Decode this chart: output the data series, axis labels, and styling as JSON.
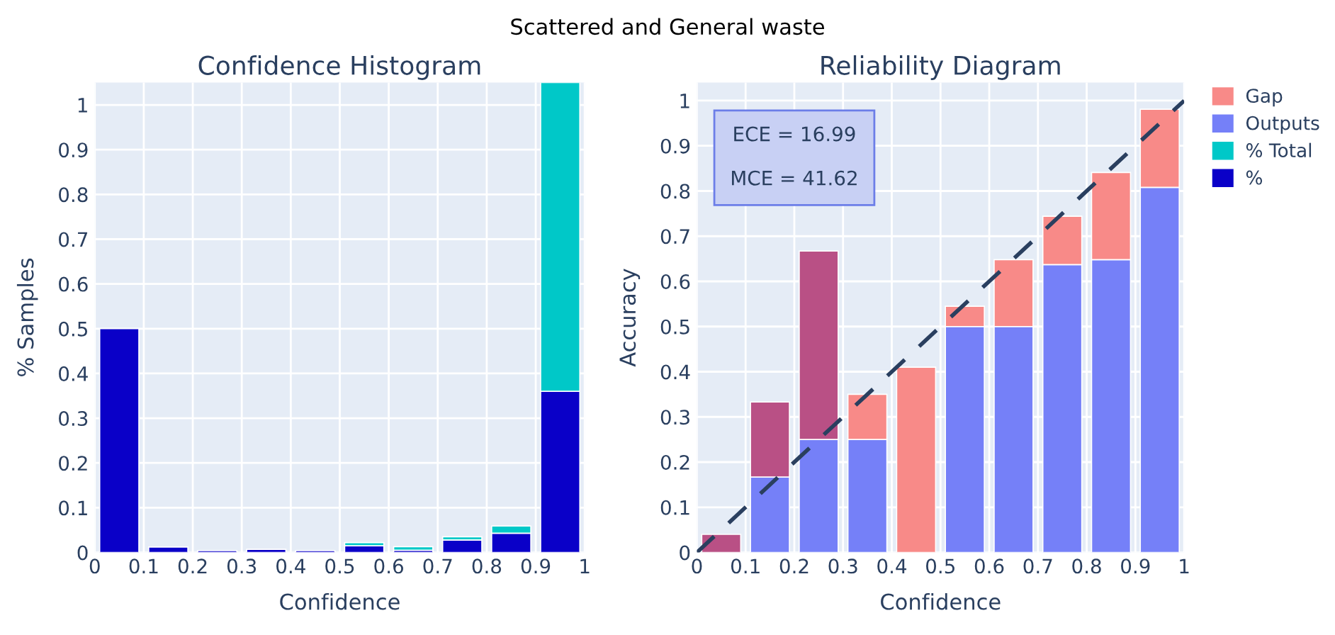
{
  "chart_data": [
    {
      "type": "bar",
      "title": "Confidence Histogram",
      "xlabel": "Confidence",
      "ylabel": "% Samples",
      "annotations": [
        "Scattered and General waste"
      ],
      "x": [
        0.05,
        0.15,
        0.25,
        0.35,
        0.45,
        0.55,
        0.65,
        0.75,
        0.85,
        0.95
      ],
      "stacked": true,
      "series": [
        {
          "name": "%",
          "color": "#0a00c8",
          "values": [
            0.5,
            0.012,
            0.004,
            0.007,
            0.004,
            0.015,
            0.005,
            0.028,
            0.043,
            0.36
          ]
        },
        {
          "name": "% Total",
          "color": "#00c8c8",
          "values": [
            null,
            null,
            null,
            null,
            null,
            0.007,
            0.008,
            0.007,
            0.016,
            0.69
          ]
        }
      ],
      "xlim": [
        0,
        1
      ],
      "xticks": [
        0,
        0.1,
        0.2,
        0.3,
        0.4,
        0.5,
        0.6,
        0.7,
        0.8,
        0.9,
        1
      ],
      "ylim": [
        0,
        1.05
      ],
      "yticks": [
        0,
        0.1,
        0.2,
        0.3,
        0.4,
        0.5,
        0.6,
        0.7,
        0.8,
        0.9,
        1
      ],
      "grid": true,
      "legend": "right"
    },
    {
      "type": "bar",
      "title": "Reliability Diagram",
      "xlabel": "Confidence",
      "ylabel": "Accuracy",
      "annotations": [
        "ECE = 16.99\n\nMCE = 41.62"
      ],
      "x": [
        0.05,
        0.15,
        0.25,
        0.35,
        0.45,
        0.55,
        0.65,
        0.75,
        0.85,
        0.95
      ],
      "stacked": true,
      "series": [
        {
          "name": "Outputs",
          "color": "#7580f8",
          "values": [
            0,
            0.167,
            0.25,
            0.25,
            0,
            0.5,
            0.5,
            0.637,
            0.648,
            0.808
          ]
        },
        {
          "name": "Gap",
          "color": "#f88a88",
          "colors": [
            "#b95085",
            "#b95085",
            "#b95085",
            "#f88a88",
            "#f88a88",
            "#f88a88",
            "#f88a88",
            "#f88a88",
            "#f88a88",
            "#f88a88"
          ],
          "values": [
            0.04,
            0.166,
            0.417,
            0.1,
            0.41,
            0.045,
            0.148,
            0.107,
            0.193,
            0.173
          ]
        },
        {
          "type": "line",
          "color": "#2a3f5f",
          "line_style": "dashed",
          "x": [
            0,
            1
          ],
          "values": [
            0,
            1
          ]
        }
      ],
      "xlim": [
        0,
        1
      ],
      "xticks": [
        0,
        0.1,
        0.2,
        0.3,
        0.4,
        0.5,
        0.6,
        0.7,
        0.8,
        0.9,
        1
      ],
      "ylim": [
        0,
        1.04
      ],
      "yticks": [
        0,
        0.1,
        0.2,
        0.3,
        0.4,
        0.5,
        0.6,
        0.7,
        0.8,
        0.9,
        1
      ],
      "grid": true,
      "legend": "right"
    }
  ]
}
